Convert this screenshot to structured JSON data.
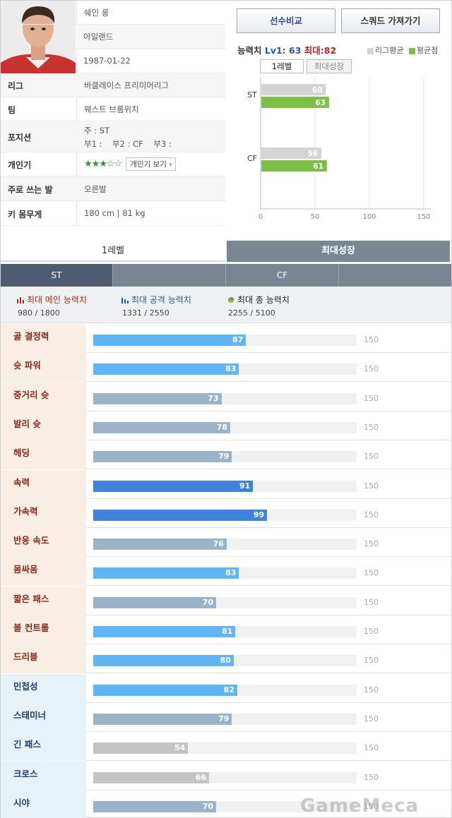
{
  "player": {
    "name": "쉐인 롱",
    "nation": "아일랜드",
    "birth": "1987-01-22",
    "rows": [
      {
        "label": "리그",
        "value": "바클레이스 프리미어리그"
      },
      {
        "label": "팀",
        "value": "웨스트 브롬위치"
      },
      {
        "label": "포지션",
        "main": "주 : ST",
        "subs": "부1 :    부2 : CF    부3 :"
      },
      {
        "label": "개인기",
        "stars": "★★★☆☆",
        "button": "개인기 보기 ›"
      },
      {
        "label": "주로 쓰는 발",
        "value": "오른발"
      },
      {
        "label": "키 몸무게",
        "value": "180 cm | 81 kg"
      }
    ]
  },
  "buttons": {
    "compare": "선수비교",
    "squad": "스쿼드 가져가기"
  },
  "ability": {
    "head": "능력치",
    "lv": "Lv1: 63",
    "max": "최대:82",
    "legend_league": "리그평균",
    "legend_avg": "평균점",
    "tab_level": "1레벨",
    "tab_max": "최대성장",
    "colors": {
      "league": "#d4d4d4",
      "avg": "#7cc146"
    }
  },
  "chart_data": {
    "type": "bar",
    "orientation": "horizontal",
    "categories": [
      "ST",
      "CF"
    ],
    "series": [
      {
        "name": "리그평균",
        "values": [
          60,
          56
        ]
      },
      {
        "name": "평균점",
        "values": [
          63,
          61
        ]
      }
    ],
    "xlim": [
      0,
      150
    ],
    "xticks": [
      "0",
      "50",
      "100",
      "150"
    ],
    "legend": "top-right"
  },
  "level_tabs": {
    "level": "1레벨",
    "max": "최대성장"
  },
  "positions": [
    "ST",
    "",
    "CF",
    ""
  ],
  "summary": [
    {
      "title": "최대 메인 능력치",
      "value": "980 / 1800"
    },
    {
      "title": "최대 공격 능력치",
      "value": "1331 / 2550"
    },
    {
      "title": "최대 총 능력치",
      "value": "2255 / 5100"
    }
  ],
  "attributes": [
    {
      "label": "골 결정력",
      "value": 87,
      "max": "150",
      "group": "warm",
      "color": "#5fb6f6"
    },
    {
      "label": "슛 파워",
      "value": 83,
      "max": "150",
      "group": "warm",
      "color": "#5fb6f6"
    },
    {
      "label": "중거리 슛",
      "value": 73,
      "max": "150",
      "group": "warm",
      "color": "#9bb3c9"
    },
    {
      "label": "발리 슛",
      "value": 78,
      "max": "150",
      "group": "warm",
      "color": "#9bb3c9"
    },
    {
      "label": "헤딩",
      "value": 79,
      "max": "150",
      "group": "warm",
      "color": "#9bb3c9"
    },
    {
      "label": "속력",
      "value": 91,
      "max": "150",
      "group": "warm",
      "color": "#3d83da"
    },
    {
      "label": "가속력",
      "value": 99,
      "max": "150",
      "group": "warm",
      "color": "#3d83da"
    },
    {
      "label": "반응 속도",
      "value": 76,
      "max": "150",
      "group": "warm",
      "color": "#9bb3c9"
    },
    {
      "label": "몸싸움",
      "value": 83,
      "max": "150",
      "group": "warm",
      "color": "#5fb6f6"
    },
    {
      "label": "짧은 패스",
      "value": 70,
      "max": "150",
      "group": "warm",
      "color": "#9bb3c9"
    },
    {
      "label": "볼 컨트롤",
      "value": 81,
      "max": "150",
      "group": "warm",
      "color": "#5fb6f6"
    },
    {
      "label": "드리블",
      "value": 80,
      "max": "150",
      "group": "warm",
      "color": "#5fb6f6"
    },
    {
      "label": "민첩성",
      "value": 82,
      "max": "150",
      "group": "cool",
      "color": "#5fb6f6"
    },
    {
      "label": "스태미너",
      "value": 79,
      "max": "150",
      "group": "cool",
      "color": "#9bb3c9"
    },
    {
      "label": "긴 패스",
      "value": 54,
      "max": "150",
      "group": "cool",
      "color": "#c4c4c4"
    },
    {
      "label": "크로스",
      "value": 66,
      "max": "150",
      "group": "cool",
      "color": "#c4c4c4"
    },
    {
      "label": "시야",
      "value": 70,
      "max": "150",
      "group": "cool",
      "color": "#9bb3c9"
    }
  ],
  "watermark": "GameMeca"
}
